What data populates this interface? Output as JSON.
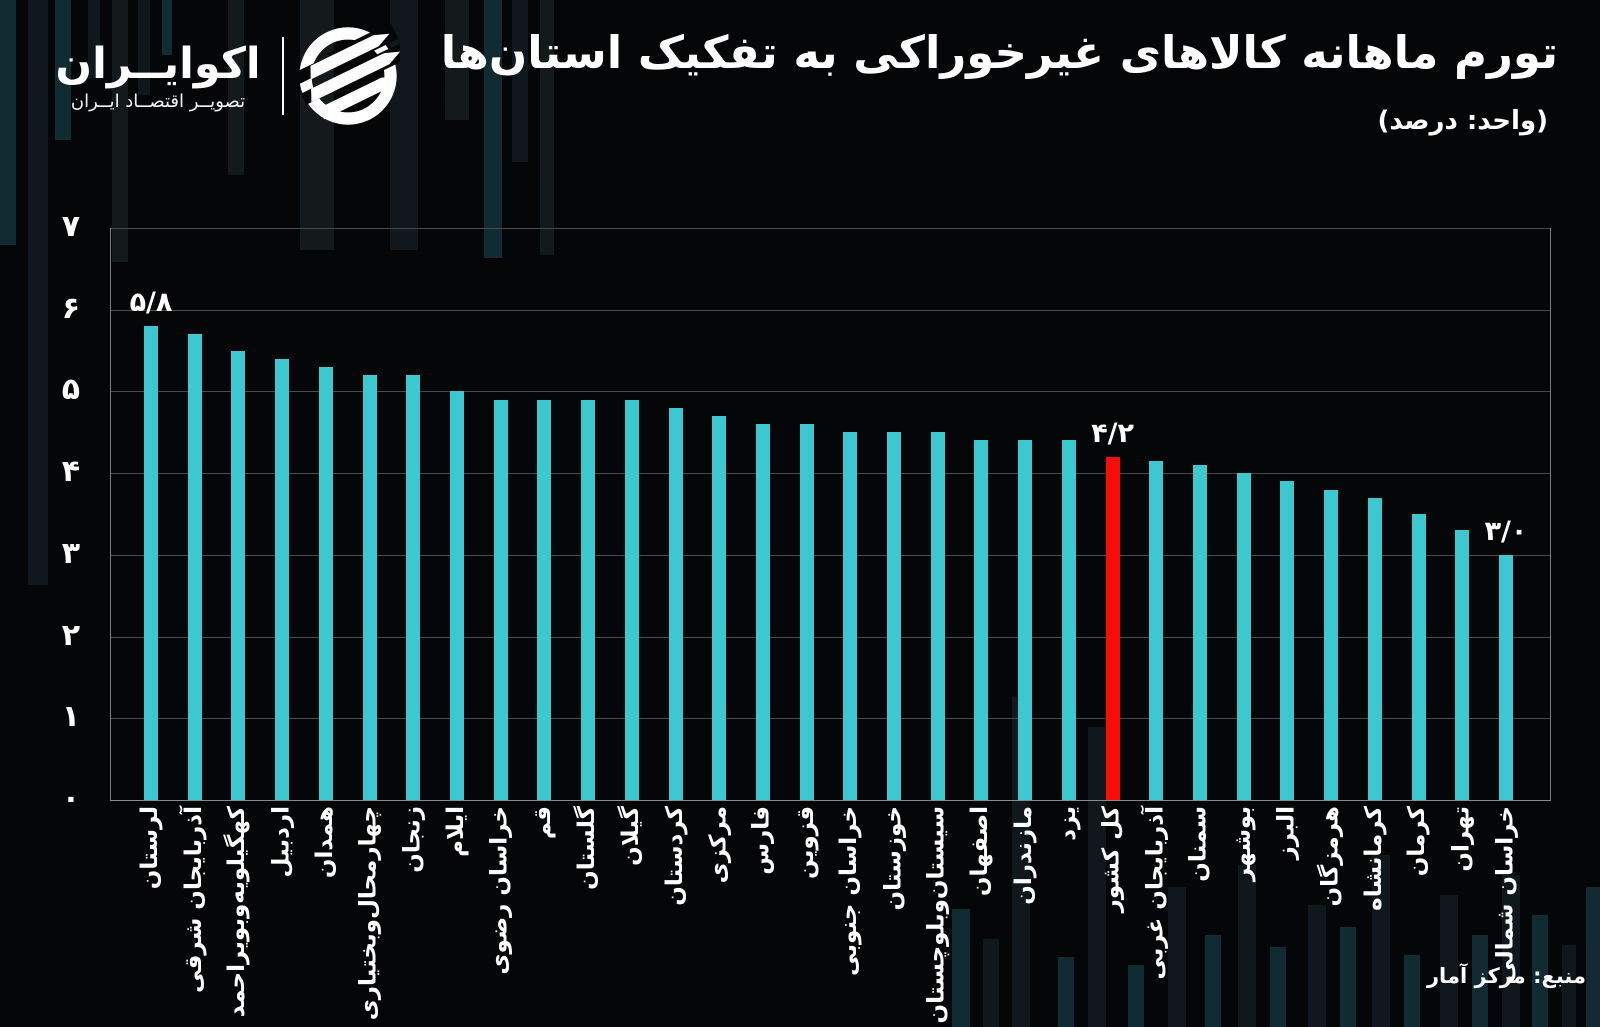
{
  "brand": {
    "name": "اکوایــران",
    "tagline": "تصویــر اقتصــاد ایــران"
  },
  "header": {
    "title": "تورم ماهانه کالاهای غیرخوراکی به تفکیک استان‌ها",
    "subtitle": "(واحد: درصد)"
  },
  "source": {
    "label": "منبع: مرکز آمار"
  },
  "colors": {
    "background": "#050607",
    "bar": "#3DC8CF",
    "highlight": "#F90D0B",
    "grid": "#4A4A4A",
    "text": "#FFFFFF"
  },
  "chart_data": {
    "type": "bar",
    "title": "تورم ماهانه کالاهای غیرخوراکی به تفکیک استان‌ها",
    "unit_label": "(واحد: درصد)",
    "xlabel": "",
    "ylabel": "",
    "ylim": [
      0,
      7
    ],
    "grid": true,
    "legend": false,
    "yticks": [
      0,
      1,
      2,
      3,
      4,
      5,
      6,
      7
    ],
    "yticks_display": [
      "۰",
      "۱",
      "۲",
      "۳",
      "۴",
      "۵",
      "۶",
      "۷"
    ],
    "highlight_index": 22,
    "categories": [
      "لرستان",
      "آذربایجان شرقی",
      "کهگیلویه‌وبویراحمد",
      "اردبیل",
      "همدان",
      "چهارمحال‌وبختیاری",
      "زنجان",
      "ایلام",
      "خراسان رضوی",
      "قم",
      "گلستان",
      "گیلان",
      "کردستان",
      "مرکزی",
      "فارس",
      "قزوین",
      "خراسان جنوبی",
      "خوزستان",
      "سیستان‌وبلوچستان",
      "اصفهان",
      "مازندران",
      "یزد",
      "کل کشور",
      "آذربایجان غربی",
      "سمنان",
      "بوشهر",
      "البرز",
      "هرمزگان",
      "کرمانشاه",
      "کرمان",
      "تهران",
      "خراسان شمالی"
    ],
    "values": [
      5.8,
      5.7,
      5.5,
      5.4,
      5.3,
      5.2,
      5.2,
      5.0,
      4.9,
      4.9,
      4.9,
      4.9,
      4.8,
      4.7,
      4.6,
      4.6,
      4.5,
      4.5,
      4.5,
      4.4,
      4.4,
      4.4,
      4.2,
      4.15,
      4.1,
      4.0,
      3.9,
      3.8,
      3.7,
      3.5,
      3.3,
      3.0
    ],
    "value_labels": [
      {
        "index": 0,
        "text": "۵/۸"
      },
      {
        "index": 22,
        "text": "۴/۲"
      },
      {
        "index": 31,
        "text": "۳/۰"
      }
    ]
  }
}
